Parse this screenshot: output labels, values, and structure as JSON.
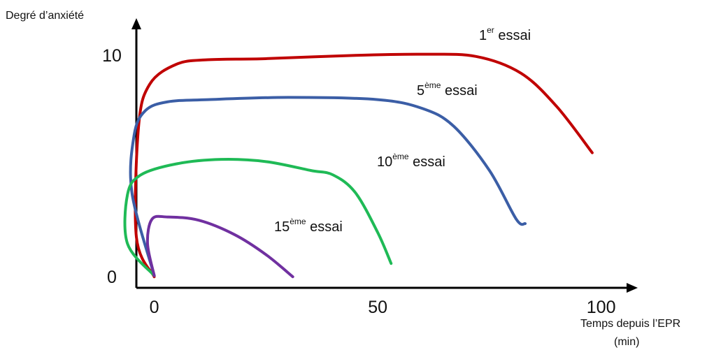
{
  "chart_data": {
    "type": "line",
    "title": "",
    "ylabel": "Degré d’anxiété",
    "xlabel_line1": "Temps depuis l’EPR",
    "xlabel_line2": "(min)",
    "xlim": [
      -4,
      106
    ],
    "ylim": [
      -0.5,
      11.3
    ],
    "x_ticks": [
      {
        "value": 0,
        "label": "0"
      },
      {
        "value": 50,
        "label": "50"
      },
      {
        "value": 100,
        "label": "100"
      }
    ],
    "y_ticks": [
      {
        "value": 0,
        "label": "0"
      },
      {
        "value": 10,
        "label": "10"
      }
    ],
    "grid": false,
    "legend": "none",
    "series": [
      {
        "name": "1er essai",
        "label_main": "1",
        "label_sup": "er",
        "label_rest": " essai",
        "color": "#c00000",
        "points": [
          [
            0,
            0
          ],
          [
            -4,
            1.8
          ],
          [
            -3.5,
            6.8
          ],
          [
            -1,
            8.7
          ],
          [
            5,
            9.6
          ],
          [
            12,
            9.8
          ],
          [
            25,
            9.85
          ],
          [
            45,
            10.0
          ],
          [
            60,
            10.05
          ],
          [
            72,
            9.95
          ],
          [
            82,
            9.2
          ],
          [
            90,
            7.7
          ],
          [
            98,
            5.6
          ]
        ]
      },
      {
        "name": "5ème essai",
        "label_main": "5",
        "label_sup": "ème",
        "label_rest": " essai",
        "color": "#3b5ea6",
        "points": [
          [
            0,
            0.05
          ],
          [
            -5,
            3.8
          ],
          [
            -4.5,
            6.4
          ],
          [
            -2,
            7.5
          ],
          [
            3,
            7.9
          ],
          [
            12,
            8.0
          ],
          [
            30,
            8.1
          ],
          [
            50,
            8.0
          ],
          [
            60,
            7.6
          ],
          [
            67,
            6.8
          ],
          [
            75,
            4.8
          ],
          [
            81,
            2.6
          ],
          [
            83,
            2.4
          ]
        ]
      },
      {
        "name": "10ème essai",
        "label_main": "10",
        "label_sup": "ème",
        "label_rest": " essai",
        "color": "#1fba56",
        "points": [
          [
            0,
            0.05
          ],
          [
            -6,
            1.5
          ],
          [
            -6,
            3.7
          ],
          [
            -3,
            4.6
          ],
          [
            5,
            5.1
          ],
          [
            15,
            5.3
          ],
          [
            25,
            5.2
          ],
          [
            35,
            4.8
          ],
          [
            40,
            4.6
          ],
          [
            45,
            3.8
          ],
          [
            50,
            2.0
          ],
          [
            53,
            0.6
          ]
        ]
      },
      {
        "name": "15ème essai",
        "label_main": "15",
        "label_sup": "ème",
        "label_rest": " essai",
        "color": "#7030a0",
        "points": [
          [
            0,
            0.05
          ],
          [
            -1.5,
            1.5
          ],
          [
            -0.5,
            2.6
          ],
          [
            3,
            2.7
          ],
          [
            10,
            2.55
          ],
          [
            18,
            1.9
          ],
          [
            25,
            1.0
          ],
          [
            31,
            0
          ]
        ]
      }
    ]
  }
}
